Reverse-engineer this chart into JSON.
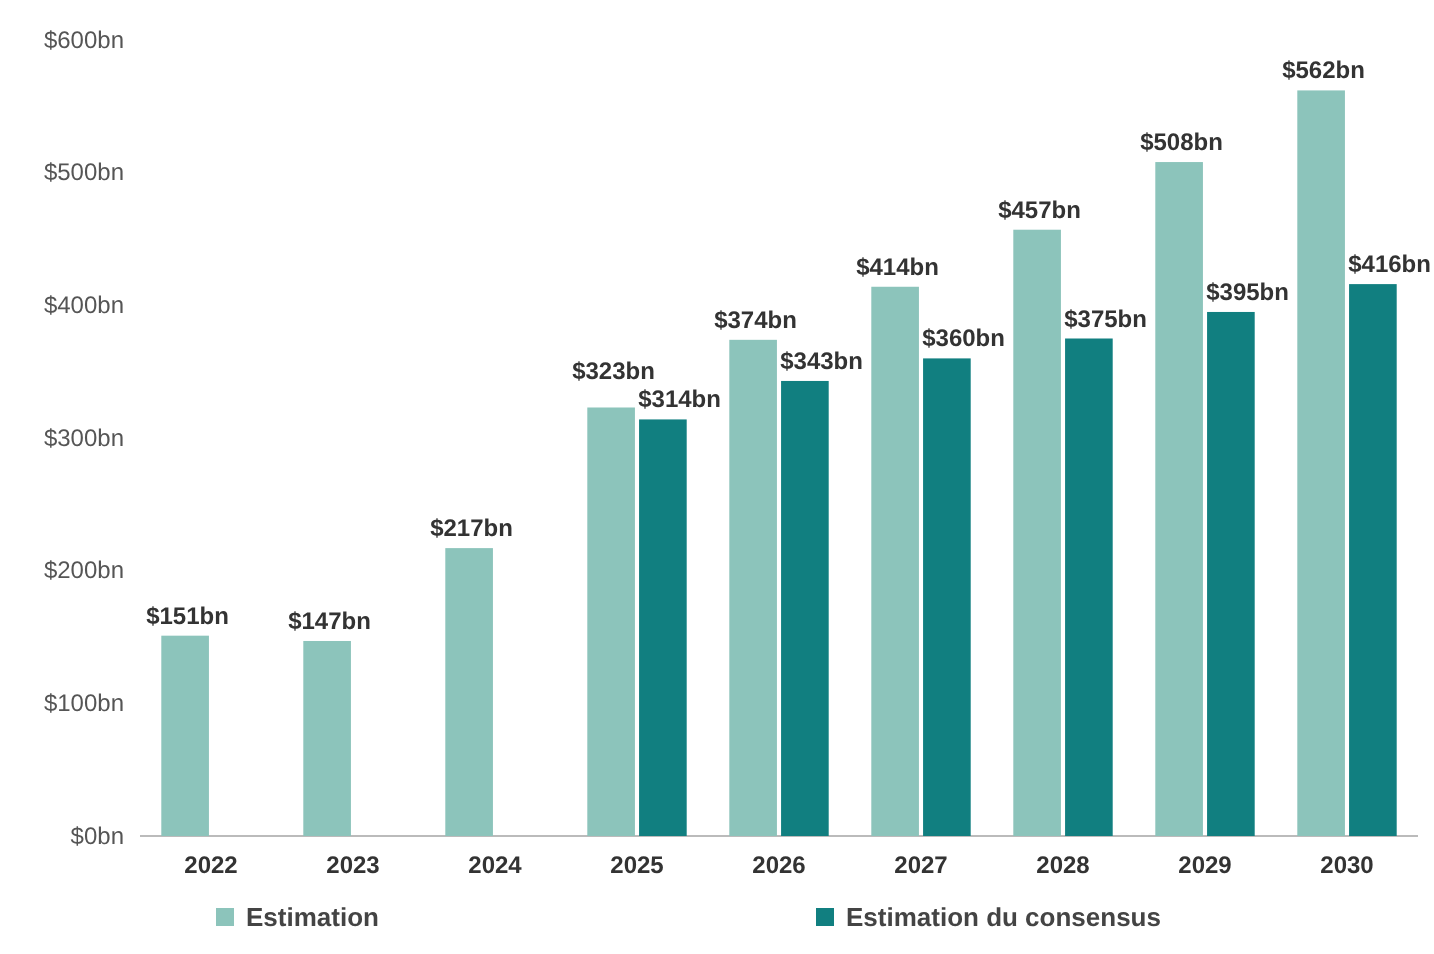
{
  "chart_data": {
    "type": "bar",
    "categories": [
      "2022",
      "2023",
      "2024",
      "2025",
      "2026",
      "2027",
      "2028",
      "2029",
      "2030"
    ],
    "series": [
      {
        "name": "Estimation",
        "color": "#8cc4bb",
        "values": [
          151,
          147,
          217,
          323,
          374,
          414,
          457,
          508,
          562
        ],
        "value_labels": [
          "$151bn",
          "$147bn",
          "$217bn",
          "$323bn",
          "$374bn",
          "$414bn",
          "$457bn",
          "$508bn",
          "$562bn"
        ]
      },
      {
        "name": "Estimation du consensus",
        "color": "#117f80",
        "values": [
          null,
          null,
          null,
          314,
          343,
          360,
          375,
          395,
          416
        ],
        "value_labels": [
          null,
          null,
          null,
          "$314bn",
          "$343bn",
          "$360bn",
          "$375bn",
          "$395bn",
          "$416bn"
        ]
      }
    ],
    "ylim": [
      0,
      600
    ],
    "yticks": [
      {
        "value": 0,
        "label": "$0bn"
      },
      {
        "value": 100,
        "label": "$100bn"
      },
      {
        "value": 200,
        "label": "$200bn"
      },
      {
        "value": 300,
        "label": "$300bn"
      },
      {
        "value": 400,
        "label": "$400bn"
      },
      {
        "value": 500,
        "label": "$500bn"
      },
      {
        "value": 600,
        "label": "$600bn"
      }
    ],
    "grid": false,
    "legend": "bottom"
  }
}
